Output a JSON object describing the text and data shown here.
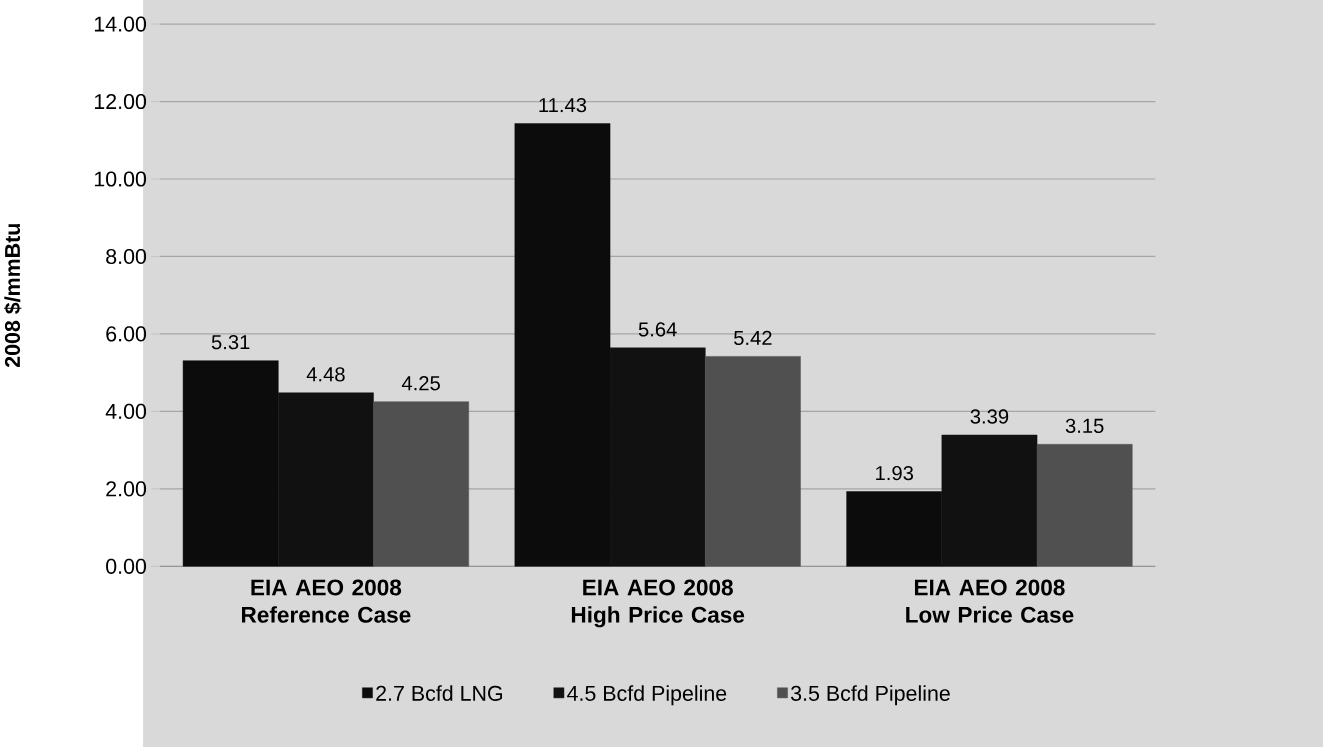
{
  "chart_data": {
    "type": "bar",
    "categories": [
      "EIA AEO 2008 Reference Case",
      "EIA AEO 2008 High Price Case",
      "EIA AEO 2008 Low Price Case"
    ],
    "series": [
      {
        "name": "2.7 Bcfd LNG",
        "color": "#0c0c0c",
        "values": [
          5.31,
          11.43,
          1.93
        ]
      },
      {
        "name": "4.5 Bcfd Pipeline",
        "color": "#111111",
        "values": [
          4.48,
          5.64,
          3.39
        ]
      },
      {
        "name": "3.5 Bcfd Pipeline",
        "color": "#505050",
        "values": [
          4.25,
          5.42,
          3.15
        ]
      }
    ],
    "ylabel": "2008 $/mmBtu",
    "ylim": [
      0,
      14
    ],
    "yticks": [
      {
        "value": 0,
        "label": "0.00"
      },
      {
        "value": 2,
        "label": "2.00"
      },
      {
        "value": 4,
        "label": "4.00"
      },
      {
        "value": 6,
        "label": "6.00"
      },
      {
        "value": 8,
        "label": "8.00"
      },
      {
        "value": 10,
        "label": "10.00"
      },
      {
        "value": 12,
        "label": "12.00"
      },
      {
        "value": 14,
        "label": "14.00"
      }
    ],
    "grid": "y",
    "legend": "bottom",
    "data_labels": true
  }
}
